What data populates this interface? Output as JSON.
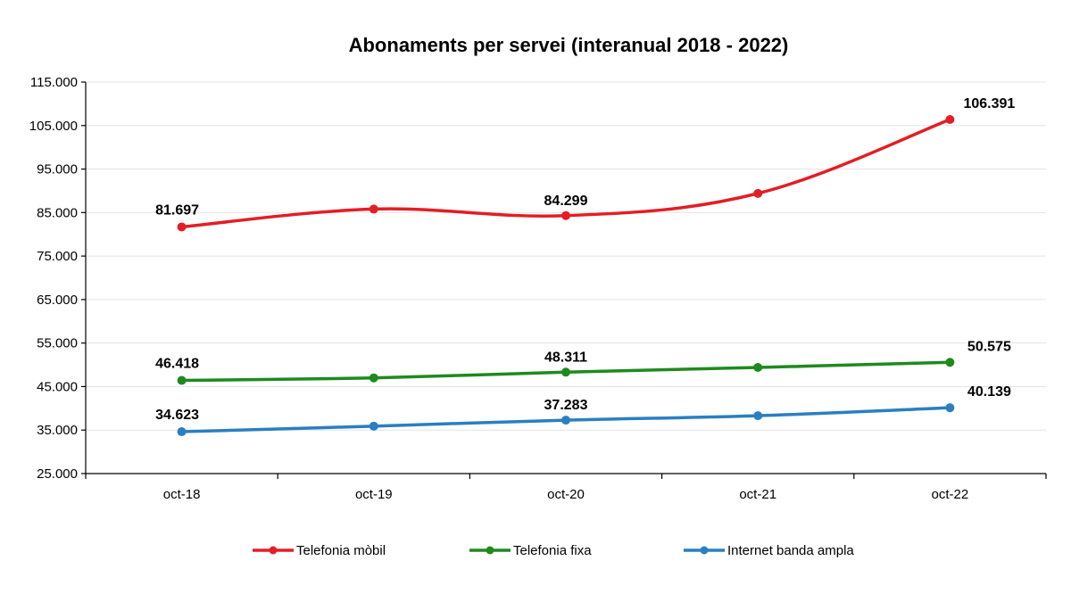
{
  "chart_data": {
    "type": "line",
    "title": "Abonaments per servei (interanual 2018 - 2022)",
    "categories": [
      "oct-18",
      "oct-19",
      "oct-20",
      "oct-21",
      "oct-22"
    ],
    "ylim": [
      25000,
      115000
    ],
    "yticks": [
      25000,
      35000,
      45000,
      55000,
      65000,
      75000,
      85000,
      95000,
      105000,
      115000
    ],
    "ytick_labels": [
      "25.000",
      "35.000",
      "45.000",
      "55.000",
      "65.000",
      "75.000",
      "85.000",
      "95.000",
      "105.000",
      "115.000"
    ],
    "grid": true,
    "legend_position": "bottom",
    "series": [
      {
        "name": "Telefonia mòbil",
        "color": "#e31e24",
        "values": [
          81697,
          85800,
          84299,
          89400,
          106391
        ],
        "labels": [
          "81.697",
          "",
          "84.299",
          "",
          "106.391"
        ]
      },
      {
        "name": "Telefonia fixa",
        "color": "#1e8a1e",
        "values": [
          46418,
          47000,
          48311,
          49400,
          50575
        ],
        "labels": [
          "46.418",
          "",
          "48.311",
          "",
          "50.575"
        ]
      },
      {
        "name": "Internet banda ampla",
        "color": "#2a7fc1",
        "values": [
          34623,
          35900,
          37283,
          38300,
          40139
        ],
        "labels": [
          "34.623",
          "",
          "37.283",
          "",
          "40.139"
        ]
      }
    ]
  }
}
